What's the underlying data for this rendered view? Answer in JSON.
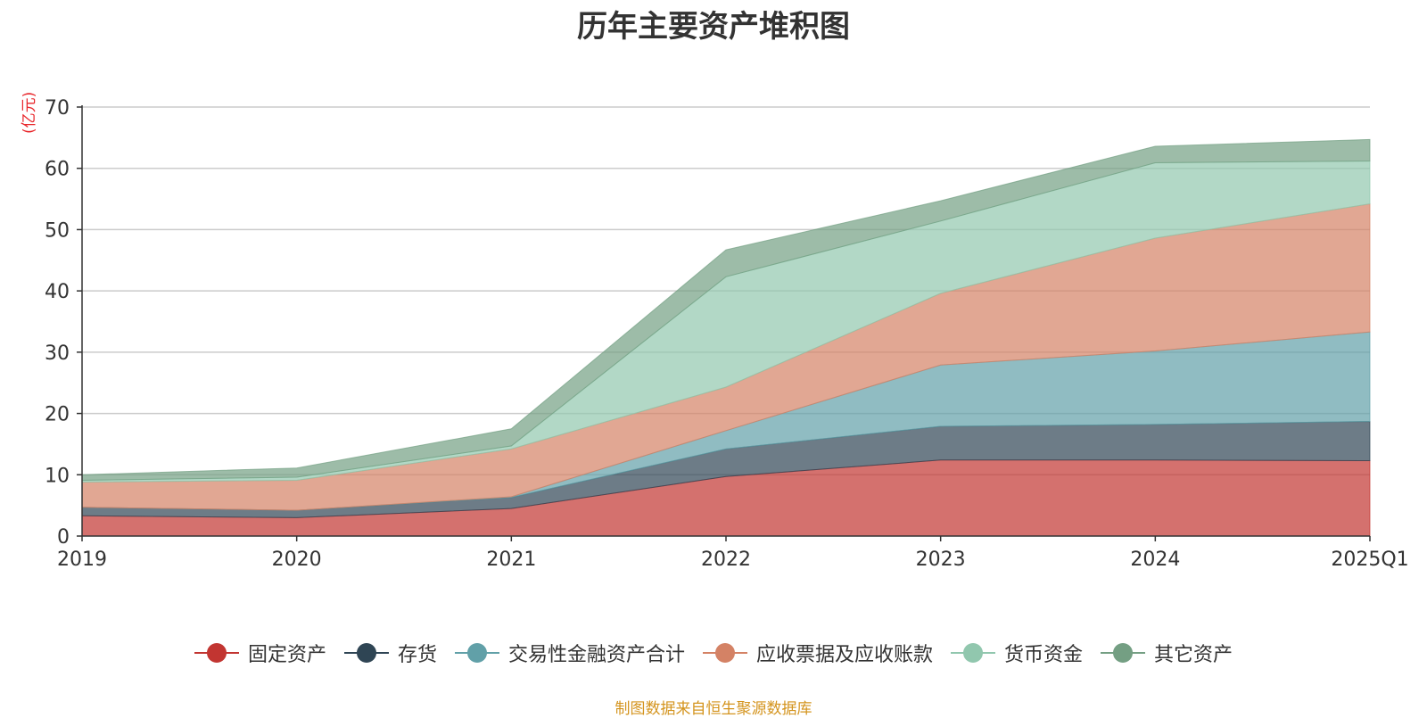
{
  "chart_data": {
    "type": "area",
    "stacked": true,
    "title": "历年主要资产堆积图",
    "unit_label": "(亿元)",
    "categories": [
      "2019",
      "2020",
      "2021",
      "2022",
      "2023",
      "2024",
      "2025Q1"
    ],
    "y_ticks": [
      "0",
      "10",
      "20",
      "30",
      "40",
      "50",
      "60",
      "70"
    ],
    "ylim": [
      0,
      70
    ],
    "grid": true,
    "legend_position": "bottom",
    "series": [
      {
        "name": "固定资产",
        "color": "#c23531",
        "values": [
          3.3,
          3.0,
          4.5,
          9.7,
          12.4,
          12.4,
          12.3
        ]
      },
      {
        "name": "存货",
        "color": "#2f4554",
        "values": [
          1.4,
          1.2,
          1.8,
          4.5,
          5.5,
          5.8,
          6.4
        ]
      },
      {
        "name": "交易性金融资产合计",
        "color": "#61a0a8",
        "values": [
          0.0,
          0.0,
          0.1,
          3.0,
          10.0,
          12.0,
          14.6
        ]
      },
      {
        "name": "应收票据及应收账款",
        "color": "#d48265",
        "values": [
          4.1,
          4.9,
          7.8,
          7.1,
          11.7,
          18.4,
          20.9
        ]
      },
      {
        "name": "货币资金",
        "color": "#91c7ae",
        "values": [
          0.3,
          0.5,
          0.5,
          18.0,
          11.8,
          12.3,
          7.0
        ]
      },
      {
        "name": "其它资产",
        "color": "#749f83",
        "values": [
          0.9,
          1.5,
          2.8,
          4.4,
          3.3,
          2.7,
          3.5
        ]
      }
    ]
  },
  "source_note": "制图数据来自恒生聚源数据库"
}
